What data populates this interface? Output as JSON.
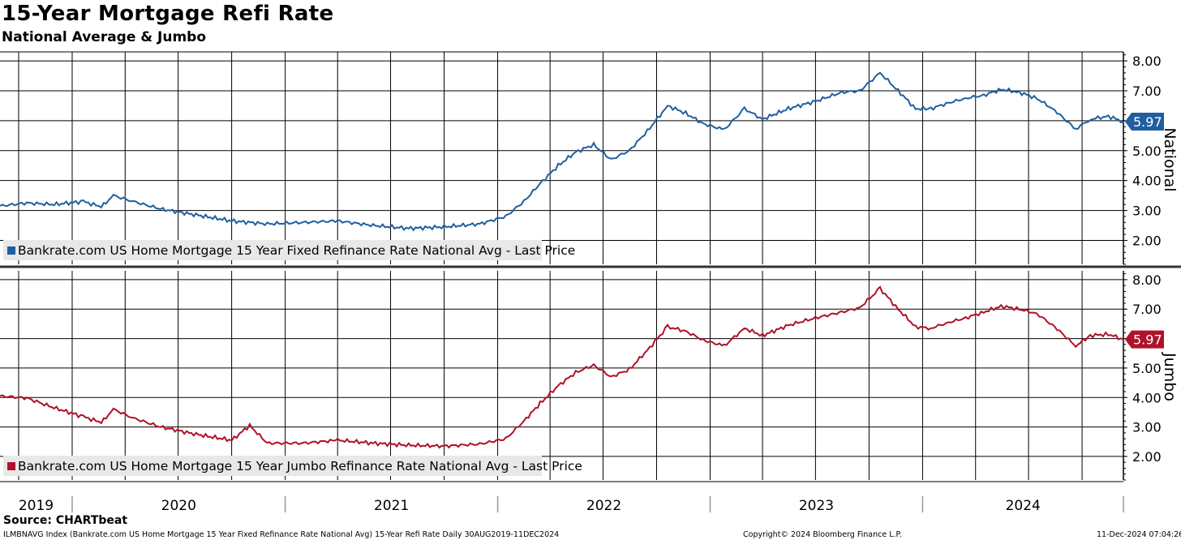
{
  "title": "15-Year Mortgage Refi Rate",
  "subtitle": "National Average & Jumbo",
  "footer": {
    "source": "Source: CHARTbeat",
    "index": "ILMBNAVG Index (Bankrate.com US Home Mortgage 15 Year Fixed Refinance Rate National Avg) 15-Year Refi Rate  Daily 30AUG2019-11DEC2024",
    "copyright": "Copyright© 2024 Bloomberg Finance L.P.",
    "timestamp": "11-Dec-2024 07:04:26"
  },
  "colors": {
    "national": "#1f5fa0",
    "jumbo": "#b0122a",
    "grid": "#000000",
    "legend_bg": "#e8e8e8"
  },
  "chart_data": [
    {
      "type": "line",
      "panel": "top",
      "axis_label": "National",
      "yticks": [
        "2.00",
        "3.00",
        "4.00",
        "5.00",
        "6.00",
        "7.00",
        "8.00"
      ],
      "ylim": [
        1.2,
        8.3
      ],
      "last_value": "5.97",
      "series": [
        {
          "name": "Bankrate.com US Home Mortgage 15 Year Fixed Refinance Rate National Avg - Last Price",
          "points": [
            [
              "2019-08-30",
              3.15
            ],
            [
              "2019-10-15",
              3.25
            ],
            [
              "2019-12-01",
              3.2
            ],
            [
              "2020-01-20",
              3.3
            ],
            [
              "2020-02-20",
              3.12
            ],
            [
              "2020-03-12",
              3.5
            ],
            [
              "2020-04-15",
              3.3
            ],
            [
              "2020-06-01",
              3.05
            ],
            [
              "2020-08-01",
              2.85
            ],
            [
              "2020-10-01",
              2.65
            ],
            [
              "2020-12-01",
              2.55
            ],
            [
              "2021-02-01",
              2.6
            ],
            [
              "2021-04-01",
              2.65
            ],
            [
              "2021-06-01",
              2.5
            ],
            [
              "2021-08-01",
              2.4
            ],
            [
              "2021-10-01",
              2.45
            ],
            [
              "2021-12-01",
              2.55
            ],
            [
              "2022-01-15",
              2.8
            ],
            [
              "2022-02-15",
              3.3
            ],
            [
              "2022-03-15",
              3.9
            ],
            [
              "2022-04-15",
              4.5
            ],
            [
              "2022-05-15",
              4.95
            ],
            [
              "2022-06-15",
              5.2
            ],
            [
              "2022-07-15",
              4.7
            ],
            [
              "2022-08-15",
              5.0
            ],
            [
              "2022-09-15",
              5.65
            ],
            [
              "2022-10-20",
              6.5
            ],
            [
              "2022-11-20",
              6.25
            ],
            [
              "2022-12-20",
              5.9
            ],
            [
              "2023-01-25",
              5.7
            ],
            [
              "2023-03-01",
              6.4
            ],
            [
              "2023-04-01",
              6.05
            ],
            [
              "2023-05-15",
              6.4
            ],
            [
              "2023-07-01",
              6.65
            ],
            [
              "2023-08-15",
              6.95
            ],
            [
              "2023-09-15",
              7.0
            ],
            [
              "2023-10-20",
              7.6
            ],
            [
              "2023-11-20",
              7.0
            ],
            [
              "2023-12-20",
              6.4
            ],
            [
              "2024-01-15",
              6.4
            ],
            [
              "2024-02-15",
              6.6
            ],
            [
              "2024-03-15",
              6.75
            ],
            [
              "2024-04-15",
              6.85
            ],
            [
              "2024-05-15",
              7.05
            ],
            [
              "2024-06-15",
              6.95
            ],
            [
              "2024-07-15",
              6.75
            ],
            [
              "2024-08-15",
              6.35
            ],
            [
              "2024-09-20",
              5.72
            ],
            [
              "2024-10-15",
              6.05
            ],
            [
              "2024-11-15",
              6.15
            ],
            [
              "2024-12-11",
              5.97
            ]
          ]
        }
      ]
    },
    {
      "type": "line",
      "panel": "bottom",
      "axis_label": "Jumbo",
      "yticks": [
        "2.00",
        "3.00",
        "4.00",
        "5.00",
        "6.00",
        "7.00",
        "8.00"
      ],
      "ylim": [
        1.2,
        8.3
      ],
      "last_value": "5.97",
      "series": [
        {
          "name": "Bankrate.com US Home Mortgage 15 Year Jumbo Refinance Rate National Avg - Last Price",
          "points": [
            [
              "2019-08-30",
              4.05
            ],
            [
              "2019-10-15",
              3.98
            ],
            [
              "2019-12-01",
              3.65
            ],
            [
              "2020-01-20",
              3.35
            ],
            [
              "2020-02-20",
              3.15
            ],
            [
              "2020-03-12",
              3.6
            ],
            [
              "2020-04-15",
              3.3
            ],
            [
              "2020-06-01",
              3.0
            ],
            [
              "2020-08-01",
              2.75
            ],
            [
              "2020-10-01",
              2.55
            ],
            [
              "2020-11-01",
              3.05
            ],
            [
              "2020-12-01",
              2.45
            ],
            [
              "2021-02-01",
              2.45
            ],
            [
              "2021-04-01",
              2.55
            ],
            [
              "2021-06-01",
              2.45
            ],
            [
              "2021-08-01",
              2.38
            ],
            [
              "2021-10-01",
              2.35
            ],
            [
              "2021-12-01",
              2.42
            ],
            [
              "2022-01-15",
              2.6
            ],
            [
              "2022-02-15",
              3.2
            ],
            [
              "2022-03-15",
              3.8
            ],
            [
              "2022-04-15",
              4.4
            ],
            [
              "2022-05-15",
              4.85
            ],
            [
              "2022-06-15",
              5.1
            ],
            [
              "2022-07-15",
              4.7
            ],
            [
              "2022-08-15",
              4.95
            ],
            [
              "2022-09-15",
              5.6
            ],
            [
              "2022-10-20",
              6.4
            ],
            [
              "2022-11-20",
              6.25
            ],
            [
              "2022-12-20",
              5.95
            ],
            [
              "2023-01-25",
              5.75
            ],
            [
              "2023-03-01",
              6.35
            ],
            [
              "2023-04-01",
              6.1
            ],
            [
              "2023-05-15",
              6.45
            ],
            [
              "2023-07-01",
              6.7
            ],
            [
              "2023-08-15",
              6.9
            ],
            [
              "2023-09-15",
              7.05
            ],
            [
              "2023-10-20",
              7.7
            ],
            [
              "2023-11-20",
              7.0
            ],
            [
              "2023-12-20",
              6.4
            ],
            [
              "2024-01-15",
              6.35
            ],
            [
              "2024-02-15",
              6.55
            ],
            [
              "2024-03-15",
              6.7
            ],
            [
              "2024-04-15",
              6.9
            ],
            [
              "2024-05-15",
              7.1
            ],
            [
              "2024-06-15",
              7.0
            ],
            [
              "2024-07-15",
              6.85
            ],
            [
              "2024-08-15",
              6.4
            ],
            [
              "2024-09-20",
              5.75
            ],
            [
              "2024-10-15",
              6.1
            ],
            [
              "2024-11-15",
              6.15
            ],
            [
              "2024-12-11",
              5.97
            ]
          ]
        }
      ]
    }
  ],
  "x_axis": {
    "start": "2019-08-30",
    "end": "2024-12-11",
    "year_labels": [
      "2019",
      "2020",
      "2021",
      "2022",
      "2023",
      "2024"
    ]
  }
}
